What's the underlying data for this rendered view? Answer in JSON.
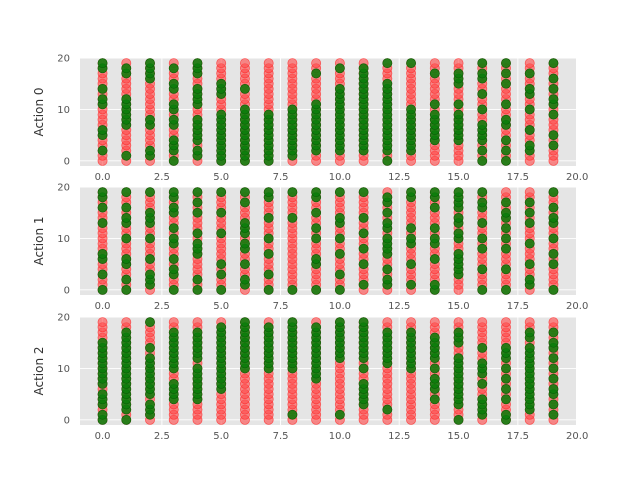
{
  "chart_data": [
    {
      "type": "scatter",
      "title": "",
      "xlabel": "",
      "ylabel": "Action 0",
      "xlim": [
        -0.95,
        19.95
      ],
      "ylim": [
        -1,
        20
      ],
      "x_ticks": [
        "0.0",
        "2.5",
        "5.0",
        "7.5",
        "10.0",
        "12.5",
        "15.0",
        "17.5",
        "20.0"
      ],
      "y_ticks": [
        "0",
        "10",
        "20"
      ],
      "grid": true,
      "series": [
        {
          "color": "#ff4a4a",
          "marker": "circle",
          "note_points": "dense column at every integer x 0-19, all integer y 0-19"
        },
        {
          "color": "#0b7d0b",
          "marker": "circle",
          "columns": [
            {
              "x": 0,
              "y": [
                2,
                5,
                6,
                11,
                12,
                14,
                18,
                19
              ]
            },
            {
              "x": 1,
              "y": [
                1,
                7,
                8,
                9,
                10,
                11,
                12,
                17,
                18
              ]
            },
            {
              "x": 2,
              "y": [
                1,
                2,
                7,
                8,
                16,
                17,
                18,
                19
              ]
            },
            {
              "x": 3,
              "y": [
                0,
                2,
                3,
                4,
                7,
                8,
                10,
                11,
                14,
                15,
                18
              ]
            },
            {
              "x": 4,
              "y": [
                1,
                2,
                4,
                5,
                6,
                7,
                8,
                11,
                12,
                13,
                14,
                17,
                18,
                19
              ]
            },
            {
              "x": 5,
              "y": [
                0,
                1,
                2,
                3,
                4,
                5,
                6,
                7,
                8,
                9,
                13,
                14,
                15
              ]
            },
            {
              "x": 6,
              "y": [
                0,
                1,
                2,
                3,
                4,
                5,
                6,
                7,
                8,
                9,
                10,
                14
              ]
            },
            {
              "x": 7,
              "y": [
                0,
                1,
                2,
                3,
                4,
                5,
                6,
                7,
                8,
                9
              ]
            },
            {
              "x": 8,
              "y": [
                1,
                2,
                3,
                4,
                5,
                6,
                7,
                8,
                9,
                10
              ]
            },
            {
              "x": 9,
              "y": [
                2,
                3,
                4,
                5,
                6,
                7,
                8,
                9,
                10,
                11,
                17
              ]
            },
            {
              "x": 10,
              "y": [
                2,
                3,
                4,
                5,
                6,
                7,
                8,
                9,
                10,
                11,
                12,
                13,
                14,
                18
              ]
            },
            {
              "x": 11,
              "y": [
                2,
                3,
                4,
                5,
                6,
                7,
                8,
                9,
                10,
                11,
                12,
                13,
                14,
                15,
                16,
                17,
                18
              ]
            },
            {
              "x": 12,
              "y": [
                0,
                2,
                3,
                4,
                5,
                6,
                7,
                8,
                9,
                10,
                11,
                12,
                13,
                14,
                15,
                19
              ]
            },
            {
              "x": 13,
              "y": [
                2,
                3,
                4,
                5,
                6,
                7,
                8,
                9,
                10,
                19
              ]
            },
            {
              "x": 14,
              "y": [
                4,
                5,
                6,
                7,
                8,
                9,
                11,
                17
              ]
            },
            {
              "x": 15,
              "y": [
                4,
                5,
                6,
                7,
                8,
                9,
                11,
                15,
                16,
                17
              ]
            },
            {
              "x": 16,
              "y": [
                0,
                2,
                4,
                5,
                6,
                7,
                10,
                13,
                16,
                17,
                19
              ]
            },
            {
              "x": 17,
              "y": [
                0,
                2,
                4,
                7,
                8,
                11,
                15,
                17,
                19
              ]
            },
            {
              "x": 18,
              "y": [
                2,
                3,
                6,
                10,
                13,
                14,
                17
              ]
            },
            {
              "x": 19,
              "y": [
                3,
                5,
                9,
                11,
                12,
                14,
                16,
                19
              ]
            }
          ]
        }
      ]
    },
    {
      "type": "scatter",
      "title": "",
      "xlabel": "",
      "ylabel": "Action 1",
      "xlim": [
        -0.95,
        19.95
      ],
      "ylim": [
        -1,
        20
      ],
      "x_ticks": [
        "0.0",
        "2.5",
        "5.0",
        "7.5",
        "10.0",
        "12.5",
        "15.0",
        "17.5",
        "20.0"
      ],
      "y_ticks": [
        "0",
        "10",
        "20"
      ],
      "grid": true,
      "series": [
        {
          "color": "#ff4a4a",
          "marker": "circle",
          "note_points": "dense column at every integer x 0-19, all integer y 0-19"
        },
        {
          "color": "#0b7d0b",
          "marker": "circle",
          "columns": [
            {
              "x": 0,
              "y": [
                0,
                3,
                6,
                7,
                13,
                16,
                18,
                19
              ]
            },
            {
              "x": 1,
              "y": [
                0,
                2,
                5,
                6,
                10,
                13,
                14,
                16,
                19
              ]
            },
            {
              "x": 2,
              "y": [
                1,
                2,
                3,
                6,
                10,
                13,
                14,
                15,
                19
              ]
            },
            {
              "x": 3,
              "y": [
                0,
                3,
                4,
                6,
                9,
                10,
                12,
                15,
                16,
                18,
                19
              ]
            },
            {
              "x": 4,
              "y": [
                0,
                2,
                7,
                8,
                9,
                11,
                15,
                17,
                19
              ]
            },
            {
              "x": 5,
              "y": [
                0,
                3,
                5,
                11,
                15,
                19
              ]
            },
            {
              "x": 6,
              "y": [
                1,
                2,
                5,
                8,
                9,
                11,
                12,
                13,
                17,
                19
              ]
            },
            {
              "x": 7,
              "y": [
                0,
                3,
                7,
                10,
                14,
                18,
                19
              ]
            },
            {
              "x": 8,
              "y": [
                0,
                14,
                19
              ]
            },
            {
              "x": 9,
              "y": [
                0,
                5,
                6,
                10,
                12,
                15,
                18,
                19
              ]
            },
            {
              "x": 10,
              "y": [
                0,
                3,
                7,
                10,
                13,
                14,
                19
              ]
            },
            {
              "x": 11,
              "y": [
                1,
                5,
                8,
                11,
                14,
                19
              ]
            },
            {
              "x": 12,
              "y": [
                1,
                2,
                4,
                7,
                8,
                9,
                10,
                12,
                13,
                15,
                17,
                18
              ]
            },
            {
              "x": 13,
              "y": [
                1,
                5,
                9,
                10,
                12,
                18,
                19
              ]
            },
            {
              "x": 14,
              "y": [
                0,
                1,
                6,
                9,
                10,
                12,
                16,
                18,
                19
              ]
            },
            {
              "x": 15,
              "y": [
                3,
                4,
                5,
                6,
                7,
                10,
                11,
                13,
                14,
                16,
                17,
                18,
                19
              ]
            },
            {
              "x": 16,
              "y": [
                0,
                4,
                8,
                10,
                13,
                16,
                17,
                19
              ]
            },
            {
              "x": 17,
              "y": [
                0,
                4,
                8,
                10,
                12,
                14,
                15,
                17
              ]
            },
            {
              "x": 18,
              "y": [
                1,
                2,
                5,
                9,
                13,
                15,
                17
              ]
            },
            {
              "x": 19,
              "y": [
                0,
                5,
                7,
                10,
                13,
                14,
                16,
                19
              ]
            }
          ]
        }
      ]
    },
    {
      "type": "scatter",
      "title": "",
      "xlabel": "",
      "ylabel": "Action 2",
      "xlim": [
        -0.95,
        19.95
      ],
      "ylim": [
        -1,
        20
      ],
      "x_ticks": [
        "0.0",
        "2.5",
        "5.0",
        "7.5",
        "10.0",
        "12.5",
        "15.0",
        "17.5",
        "20.0"
      ],
      "y_ticks": [
        "0",
        "10",
        "20"
      ],
      "grid": true,
      "series": [
        {
          "color": "#ff4a4a",
          "marker": "circle",
          "note_points": "dense column at every integer x 0-19, all integer y 0-19"
        },
        {
          "color": "#0b7d0b",
          "marker": "circle",
          "columns": [
            {
              "x": 0,
              "y": [
                0,
                1,
                3,
                4,
                5,
                7,
                8,
                9,
                10,
                11,
                12,
                13,
                14,
                15
              ]
            },
            {
              "x": 1,
              "y": [
                0,
                2,
                3,
                4,
                5,
                6,
                7,
                8,
                9,
                10,
                11,
                12,
                13,
                14,
                15,
                16,
                17
              ]
            },
            {
              "x": 2,
              "y": [
                1,
                2,
                3,
                5,
                6,
                7,
                8,
                9,
                10,
                11,
                12,
                14,
                19
              ]
            },
            {
              "x": 3,
              "y": [
                4,
                5,
                6,
                7,
                10,
                11,
                12,
                13,
                14,
                15,
                16,
                17
              ]
            },
            {
              "x": 4,
              "y": [
                4,
                5,
                6,
                7,
                8,
                9,
                10,
                12,
                13,
                14,
                15,
                16,
                17
              ]
            },
            {
              "x": 5,
              "y": [
                6,
                7,
                8,
                9,
                10,
                11,
                12,
                13,
                14,
                15,
                16,
                17,
                18
              ]
            },
            {
              "x": 6,
              "y": [
                10,
                11,
                12,
                13,
                14,
                15,
                16,
                17,
                18,
                19
              ]
            },
            {
              "x": 7,
              "y": [
                10,
                11,
                12,
                13,
                14,
                15,
                16,
                17,
                18
              ]
            },
            {
              "x": 8,
              "y": [
                1,
                10,
                11,
                12,
                13,
                14,
                15,
                16,
                17,
                18,
                19
              ]
            },
            {
              "x": 9,
              "y": [
                8,
                9,
                10,
                11,
                12,
                13,
                14,
                15,
                16,
                17,
                18
              ]
            },
            {
              "x": 10,
              "y": [
                1,
                12,
                13,
                14,
                15,
                16,
                17,
                18,
                19
              ]
            },
            {
              "x": 11,
              "y": [
                3,
                4,
                5,
                6,
                7,
                10,
                12,
                13,
                14,
                15,
                16,
                17,
                18,
                19
              ]
            },
            {
              "x": 12,
              "y": [
                2,
                11,
                12,
                13,
                14,
                15,
                16,
                17
              ]
            },
            {
              "x": 13,
              "y": [
                10,
                11,
                12,
                13,
                14,
                15,
                16,
                17
              ]
            },
            {
              "x": 14,
              "y": [
                4,
                6,
                7,
                8,
                10,
                12,
                13,
                14,
                15,
                16
              ]
            },
            {
              "x": 15,
              "y": [
                0,
                3,
                4,
                5,
                6,
                7,
                8,
                9,
                10,
                11,
                12,
                15,
                16,
                17
              ]
            },
            {
              "x": 16,
              "y": [
                1,
                2,
                3,
                4,
                7,
                9,
                10,
                11,
                14
              ]
            },
            {
              "x": 17,
              "y": [
                0,
                1,
                4,
                6,
                8,
                10,
                12,
                13,
                14
              ]
            },
            {
              "x": 18,
              "y": [
                2,
                3,
                4,
                5,
                6,
                7,
                8,
                9,
                10,
                11,
                12,
                13,
                14,
                16,
                17
              ]
            },
            {
              "x": 19,
              "y": [
                1,
                3,
                5,
                6,
                8,
                10,
                12,
                14,
                15,
                17
              ]
            }
          ]
        }
      ]
    }
  ]
}
